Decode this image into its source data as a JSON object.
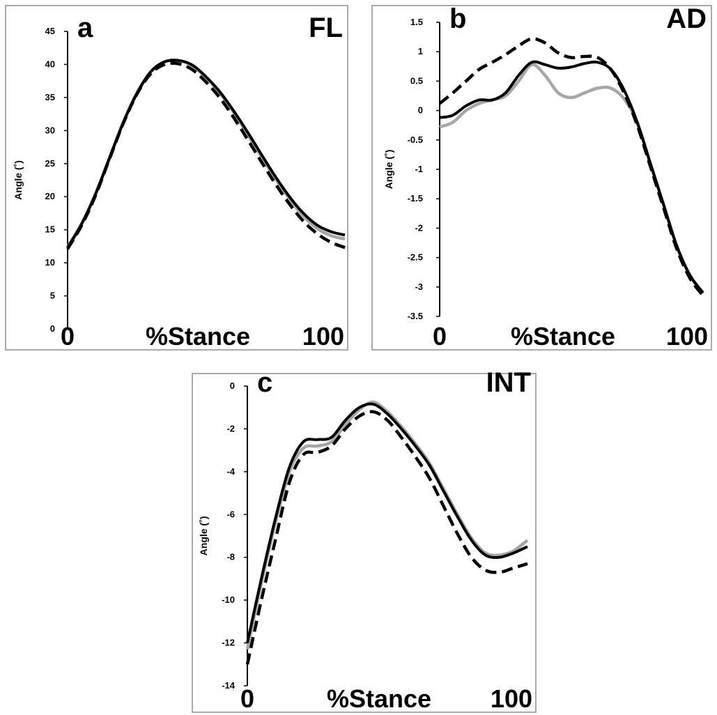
{
  "chart_data": [
    {
      "type": "line",
      "panel_letter": "a",
      "title": "FL",
      "xlabel": "%Stance",
      "x_tick_labels": [
        "0",
        "100"
      ],
      "ylabel": "Angle (˚)",
      "ylim": [
        0,
        45
      ],
      "yticks": [
        0,
        5,
        10,
        15,
        20,
        25,
        30,
        35,
        40,
        45
      ],
      "x": [
        0,
        5,
        10,
        15,
        20,
        25,
        30,
        35,
        40,
        45,
        50,
        55,
        60,
        65,
        70,
        75,
        80,
        85,
        90,
        95,
        100
      ],
      "series": [
        {
          "style": "solid-gray",
          "color": "#a6a6a6",
          "values": [
            12.4,
            15.9,
            20.4,
            25.8,
            31.2,
            35.7,
            38.9,
            40.4,
            40.6,
            39.8,
            38.0,
            35.6,
            32.7,
            29.4,
            26.0,
            22.7,
            19.7,
            17.1,
            15.2,
            14.1,
            13.6
          ]
        },
        {
          "style": "solid-black",
          "color": "#000000",
          "values": [
            12.3,
            15.8,
            20.3,
            25.7,
            31.1,
            35.6,
            38.9,
            40.4,
            40.6,
            39.9,
            38.1,
            35.8,
            32.9,
            29.7,
            26.3,
            23.0,
            20.0,
            17.5,
            15.7,
            14.7,
            14.2
          ]
        },
        {
          "style": "dashed-black",
          "color": "#000000",
          "values": [
            12.1,
            15.6,
            20.1,
            25.6,
            31.0,
            35.5,
            38.6,
            40.0,
            40.1,
            39.2,
            37.3,
            34.9,
            31.9,
            28.6,
            25.2,
            21.9,
            18.9,
            16.3,
            14.4,
            13.1,
            12.3
          ]
        }
      ]
    },
    {
      "type": "line",
      "panel_letter": "b",
      "title": "AD",
      "xlabel": "%Stance",
      "x_tick_labels": [
        "0",
        "100"
      ],
      "ylabel": "Angle (˚)",
      "ylim": [
        -3.5,
        1.5
      ],
      "yticks": [
        "-3.5",
        "-3",
        "-2.5",
        "-2",
        "-1.5",
        "-1",
        "-0.5",
        "0",
        "0.5",
        "1",
        "1.5"
      ],
      "x": [
        0,
        5,
        10,
        15,
        20,
        25,
        30,
        35,
        40,
        45,
        50,
        55,
        60,
        65,
        70,
        75,
        80,
        85,
        90,
        95,
        100
      ],
      "series": [
        {
          "style": "solid-gray",
          "color": "#a6a6a6",
          "values": [
            -0.28,
            -0.2,
            0.0,
            0.12,
            0.18,
            0.25,
            0.5,
            0.78,
            0.6,
            0.3,
            0.22,
            0.3,
            0.38,
            0.38,
            0.2,
            -0.2,
            -0.9,
            -1.6,
            -2.3,
            -2.8,
            -3.1
          ]
        },
        {
          "style": "solid-black",
          "color": "#000000",
          "values": [
            -0.12,
            -0.08,
            0.08,
            0.18,
            0.18,
            0.3,
            0.6,
            0.82,
            0.78,
            0.72,
            0.74,
            0.8,
            0.82,
            0.7,
            0.35,
            -0.2,
            -0.9,
            -1.6,
            -2.3,
            -2.8,
            -3.1
          ]
        },
        {
          "style": "dashed-black",
          "color": "#000000",
          "values": [
            0.12,
            0.3,
            0.5,
            0.7,
            0.82,
            0.95,
            1.1,
            1.22,
            1.15,
            0.98,
            0.9,
            0.92,
            0.9,
            0.7,
            0.3,
            -0.25,
            -0.95,
            -1.65,
            -2.35,
            -2.85,
            -3.15
          ]
        }
      ]
    },
    {
      "type": "line",
      "panel_letter": "c",
      "title": "INT",
      "xlabel": "%Stance",
      "x_tick_labels": [
        "0",
        "100"
      ],
      "ylabel": "Angle (˚)",
      "ylim": [
        -14,
        0
      ],
      "yticks": [
        -14,
        -12,
        -10,
        -8,
        -6,
        -4,
        -2,
        0
      ],
      "x": [
        0,
        5,
        10,
        15,
        20,
        25,
        30,
        35,
        40,
        45,
        50,
        55,
        60,
        65,
        70,
        75,
        80,
        85,
        90,
        95,
        100
      ],
      "series": [
        {
          "style": "solid-gray",
          "color": "#a6a6a6",
          "values": [
            -12.3,
            -9.2,
            -6.4,
            -4.0,
            -2.9,
            -2.8,
            -2.6,
            -1.8,
            -1.1,
            -0.75,
            -1.2,
            -1.9,
            -2.7,
            -3.6,
            -4.8,
            -6.0,
            -7.1,
            -7.8,
            -7.9,
            -7.7,
            -7.2
          ]
        },
        {
          "style": "solid-black",
          "color": "#000000",
          "values": [
            -12.0,
            -9.0,
            -6.2,
            -3.8,
            -2.6,
            -2.5,
            -2.4,
            -1.6,
            -1.0,
            -0.85,
            -1.3,
            -2.0,
            -2.8,
            -3.7,
            -4.9,
            -6.1,
            -7.2,
            -7.9,
            -8.0,
            -7.8,
            -7.5
          ]
        },
        {
          "style": "dashed-black",
          "color": "#000000",
          "values": [
            -13.0,
            -10.0,
            -7.2,
            -4.5,
            -3.2,
            -3.1,
            -2.8,
            -2.0,
            -1.4,
            -1.2,
            -1.6,
            -2.4,
            -3.3,
            -4.3,
            -5.6,
            -6.9,
            -8.0,
            -8.6,
            -8.7,
            -8.5,
            -8.3
          ]
        }
      ]
    }
  ]
}
